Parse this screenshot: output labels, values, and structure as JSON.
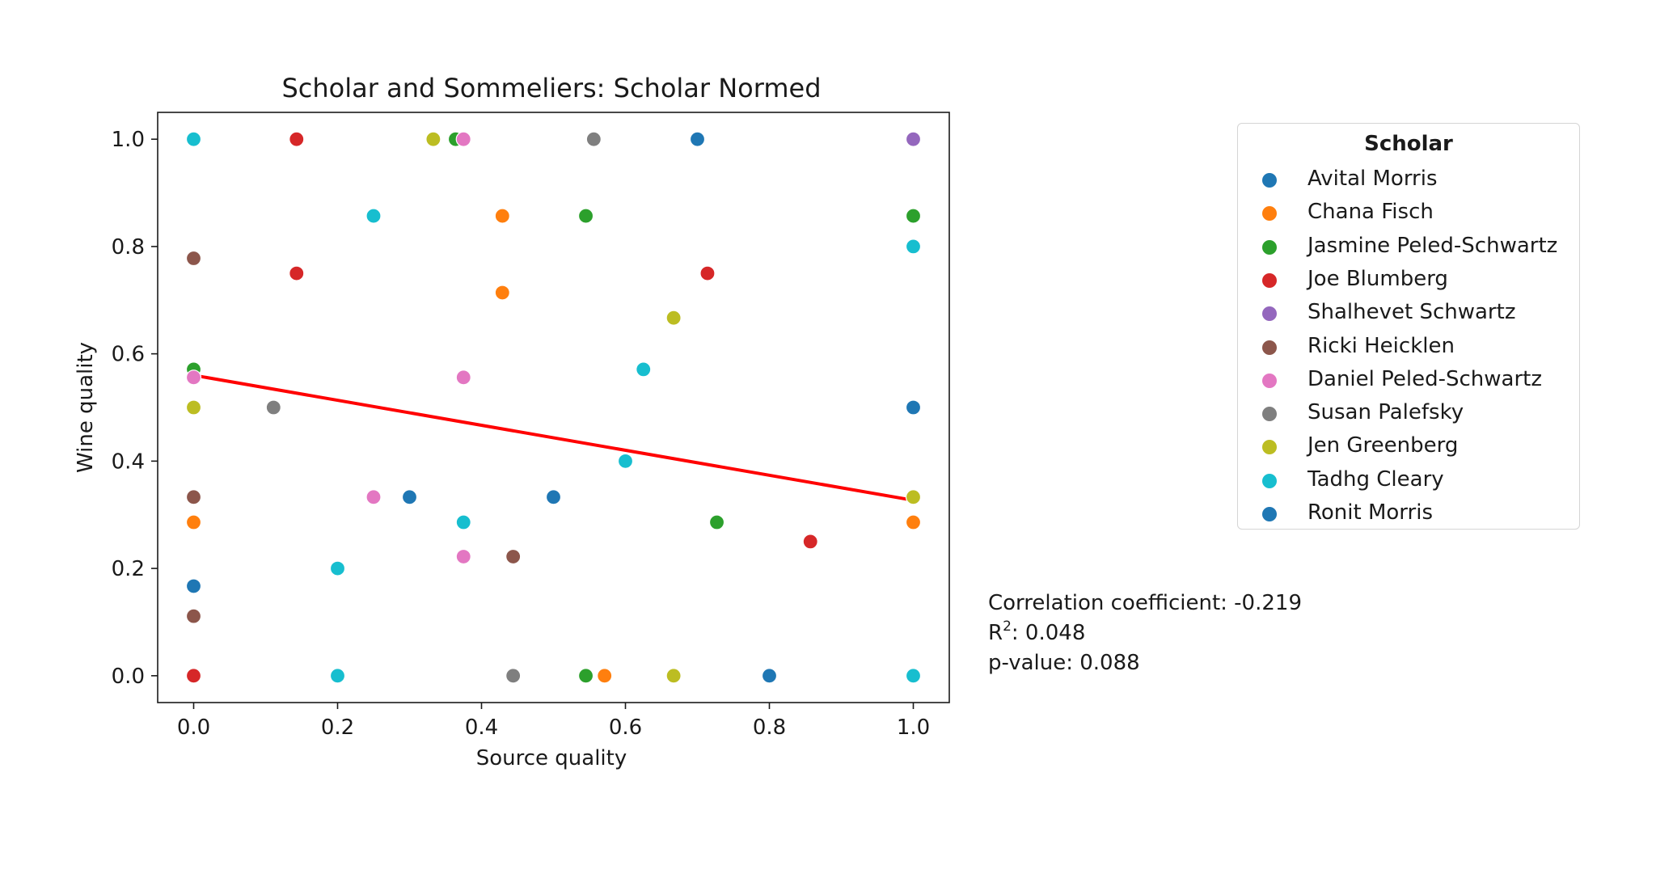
{
  "chart_data": {
    "type": "scatter",
    "title": "Scholar and Sommeliers: Scholar Normed",
    "xlabel": "Source quality",
    "ylabel": "Wine quality",
    "xlim": [
      -0.05,
      1.05
    ],
    "ylim": [
      -0.05,
      1.05
    ],
    "xticks": [
      "0.0",
      "0.2",
      "0.4",
      "0.6",
      "0.8",
      "1.0"
    ],
    "yticks": [
      "0.0",
      "0.2",
      "0.4",
      "0.6",
      "0.8",
      "1.0"
    ],
    "grid": false,
    "legend_title": "Scholar",
    "legend_position": "outside-right",
    "series": [
      {
        "name": "Avital Morris",
        "color": "#1f77b4",
        "points": [
          [
            0.5,
            0.333
          ],
          [
            0.7,
            1.0
          ],
          [
            0.8,
            0.0
          ],
          [
            1.0,
            0.5
          ],
          [
            0.3,
            0.333
          ],
          [
            0.0,
            0.167
          ]
        ]
      },
      {
        "name": "Chana Fisch",
        "color": "#ff7f0e",
        "points": [
          [
            0.0,
            0.286
          ],
          [
            0.429,
            0.857
          ],
          [
            0.429,
            0.714
          ],
          [
            0.571,
            0.0
          ],
          [
            1.0,
            0.286
          ]
        ]
      },
      {
        "name": "Jasmine Peled-Schwartz",
        "color": "#2ca02c",
        "points": [
          [
            0.0,
            0.571
          ],
          [
            0.364,
            1.0
          ],
          [
            0.545,
            0.857
          ],
          [
            0.545,
            0.0
          ],
          [
            0.727,
            0.286
          ],
          [
            1.0,
            0.857
          ]
        ]
      },
      {
        "name": "Joe Blumberg",
        "color": "#d62728",
        "points": [
          [
            0.143,
            1.0
          ],
          [
            0.143,
            0.75
          ],
          [
            0.714,
            0.75
          ],
          [
            0.857,
            0.25
          ],
          [
            0.0,
            0.0
          ]
        ]
      },
      {
        "name": "Shalhevet Schwartz",
        "color": "#9467bd",
        "points": [
          [
            1.0,
            1.0
          ]
        ]
      },
      {
        "name": "Ricki Heicklen",
        "color": "#8c564b",
        "points": [
          [
            0.0,
            0.778
          ],
          [
            0.0,
            0.333
          ],
          [
            0.444,
            0.222
          ],
          [
            0.0,
            0.111
          ]
        ]
      },
      {
        "name": "Daniel Peled-Schwartz",
        "color": "#e377c2",
        "points": [
          [
            0.375,
            1.0
          ],
          [
            0.375,
            0.556
          ],
          [
            0.25,
            0.333
          ],
          [
            0.375,
            0.222
          ],
          [
            0.0,
            0.556
          ]
        ]
      },
      {
        "name": "Susan Palefsky",
        "color": "#7f7f7f",
        "points": [
          [
            0.556,
            1.0
          ],
          [
            0.111,
            0.5
          ],
          [
            0.444,
            0.0
          ]
        ]
      },
      {
        "name": "Jen Greenberg",
        "color": "#bcbd22",
        "points": [
          [
            0.333,
            1.0
          ],
          [
            0.667,
            0.667
          ],
          [
            0.0,
            0.5
          ],
          [
            1.0,
            0.333
          ],
          [
            0.667,
            0.0
          ]
        ]
      },
      {
        "name": "Tadhg Cleary",
        "color": "#17becf",
        "points": [
          [
            0.0,
            1.0
          ],
          [
            0.25,
            0.857
          ],
          [
            1.0,
            0.8
          ],
          [
            0.625,
            0.571
          ],
          [
            0.6,
            0.4
          ],
          [
            0.375,
            0.286
          ],
          [
            0.2,
            0.2
          ],
          [
            0.2,
            0.0
          ],
          [
            1.0,
            0.0
          ]
        ]
      },
      {
        "name": "Ronit Morris",
        "color": "#1f77b4",
        "points": []
      }
    ],
    "regression_line": {
      "color": "#ff0000",
      "x": [
        0.0,
        1.0
      ],
      "y": [
        0.56,
        0.327
      ]
    }
  },
  "stats": {
    "correlation_label": "Correlation coefficient: -0.219",
    "r2_prefix": "R",
    "r2_superscript": "2",
    "r2_value": ": 0.048",
    "pvalue_label": "p-value: 0.088"
  }
}
